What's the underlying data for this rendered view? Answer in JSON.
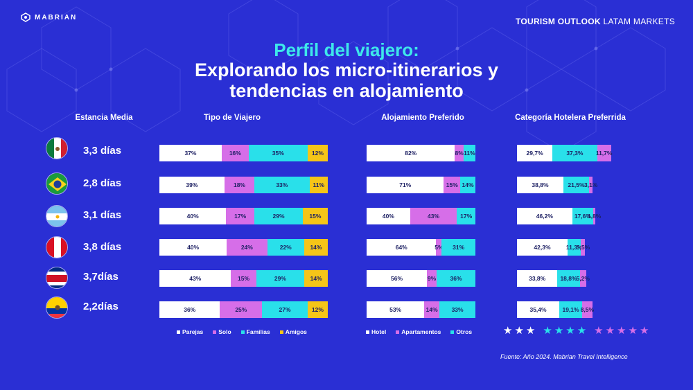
{
  "brand": "MABRIAN",
  "header": {
    "bold": "TOURISM OUTLOOK",
    "light": "LATAM MARKETS"
  },
  "title_line1": "Perfil del viajero:",
  "title_line2": "Explorando los micro-itinerarios y",
  "title_line3": "tendencias en alojamiento",
  "columns": {
    "stay": "Estancia Media",
    "traveler": "Tipo de Viajero",
    "lodging": "Alojamiento Preferido",
    "hotel_cat": "Categoría  Hotelera Preferrida"
  },
  "colors": {
    "background": "#2a2fd4",
    "white": "#ffffff",
    "magenta": "#d66ee8",
    "cyan": "#29e0ea",
    "yellow": "#f5c518",
    "title_accent": "#3ee8ea"
  },
  "countries": [
    {
      "flag": "mexico-flag-icon",
      "stay": "3,3 días"
    },
    {
      "flag": "brazil-flag-icon",
      "stay": "2,8 días"
    },
    {
      "flag": "argentina-flag-icon",
      "stay": "3,1 días"
    },
    {
      "flag": "peru-flag-icon",
      "stay": "3,8 días"
    },
    {
      "flag": "costa-rica-flag-icon",
      "stay": "3,7días"
    },
    {
      "flag": "ecuador-flag-icon",
      "stay": "2,2días"
    }
  ],
  "chart_data": [
    {
      "type": "bar",
      "title": "Tipo de Viajero",
      "stacked": true,
      "orientation": "horizontal",
      "series": [
        {
          "name": "Parejas",
          "color": "#ffffff",
          "values": [
            37,
            39,
            40,
            40,
            43,
            36
          ],
          "labels": [
            "37%",
            "39%",
            "40%",
            "40%",
            "43%",
            "36%"
          ]
        },
        {
          "name": "Solo",
          "color": "#d66ee8",
          "values": [
            16,
            18,
            17,
            24,
            15,
            25
          ],
          "labels": [
            "16%",
            "18%",
            "17%",
            "24%",
            "15%",
            "25%"
          ]
        },
        {
          "name": "Familias",
          "color": "#29e0ea",
          "values": [
            35,
            33,
            29,
            22,
            29,
            27
          ],
          "labels": [
            "35%",
            "33%",
            "29%",
            "22%",
            "29%",
            "27%"
          ]
        },
        {
          "name": "Amigos",
          "color": "#f5c518",
          "values": [
            12,
            11,
            15,
            14,
            14,
            12
          ],
          "labels": [
            "12%",
            "11%",
            "15%",
            "14%",
            "14%",
            "12%"
          ]
        }
      ]
    },
    {
      "type": "bar",
      "title": "Alojamiento Preferido",
      "stacked": true,
      "orientation": "horizontal",
      "series": [
        {
          "name": "Hotel",
          "color": "#ffffff",
          "values": [
            82,
            71,
            40,
            64,
            56,
            53
          ],
          "labels": [
            "82%",
            "71%",
            "40%",
            "64%",
            "56%",
            "53%"
          ]
        },
        {
          "name": "Apartamentos",
          "color": "#d66ee8",
          "values": [
            8,
            15,
            43,
            5,
            9,
            14
          ],
          "labels": [
            "8%",
            "15%",
            "43%",
            "5%",
            "9%",
            "14%"
          ]
        },
        {
          "name": "Otros",
          "color": "#29e0ea",
          "values": [
            11,
            14,
            17,
            31,
            36,
            33
          ],
          "labels": [
            "11%",
            "14%",
            "17%",
            "31%",
            "36%",
            "33%"
          ]
        }
      ]
    },
    {
      "type": "bar",
      "title": "Categoría  Hotelera Preferrida",
      "stacked": true,
      "orientation": "horizontal",
      "series": [
        {
          "name": "3 estrellas",
          "color": "#ffffff",
          "values": [
            29.7,
            38.8,
            46.2,
            42.3,
            33.8,
            35.4
          ],
          "labels": [
            "29,7%",
            "38,8%",
            "46,2%",
            "42,3%",
            "33,8%",
            "35,4%"
          ]
        },
        {
          "name": "4 estrellas",
          "color": "#29e0ea",
          "values": [
            37.3,
            21.5,
            17.6,
            11.3,
            18.8,
            19.1
          ],
          "labels": [
            "37,3%",
            "21,5%",
            "17,6%",
            "11,3%",
            "18,8%",
            "19,1%"
          ]
        },
        {
          "name": "5 estrellas",
          "color": "#d66ee8",
          "values": [
            11.7,
            3.1,
            1.8,
            3.5,
            5.2,
            8.5
          ],
          "labels": [
            "11,7%",
            "3,1%",
            "1,8%",
            "3,5%",
            "5,2%",
            "8,5%"
          ]
        }
      ]
    }
  ],
  "stars_legend": [
    {
      "count": 3,
      "color": "#ffffff"
    },
    {
      "count": 4,
      "color": "#29e0ea"
    },
    {
      "count": 5,
      "color": "#d66ee8"
    }
  ],
  "source": "Fuente: Año 2024. Mabrian Travel Intelligence"
}
